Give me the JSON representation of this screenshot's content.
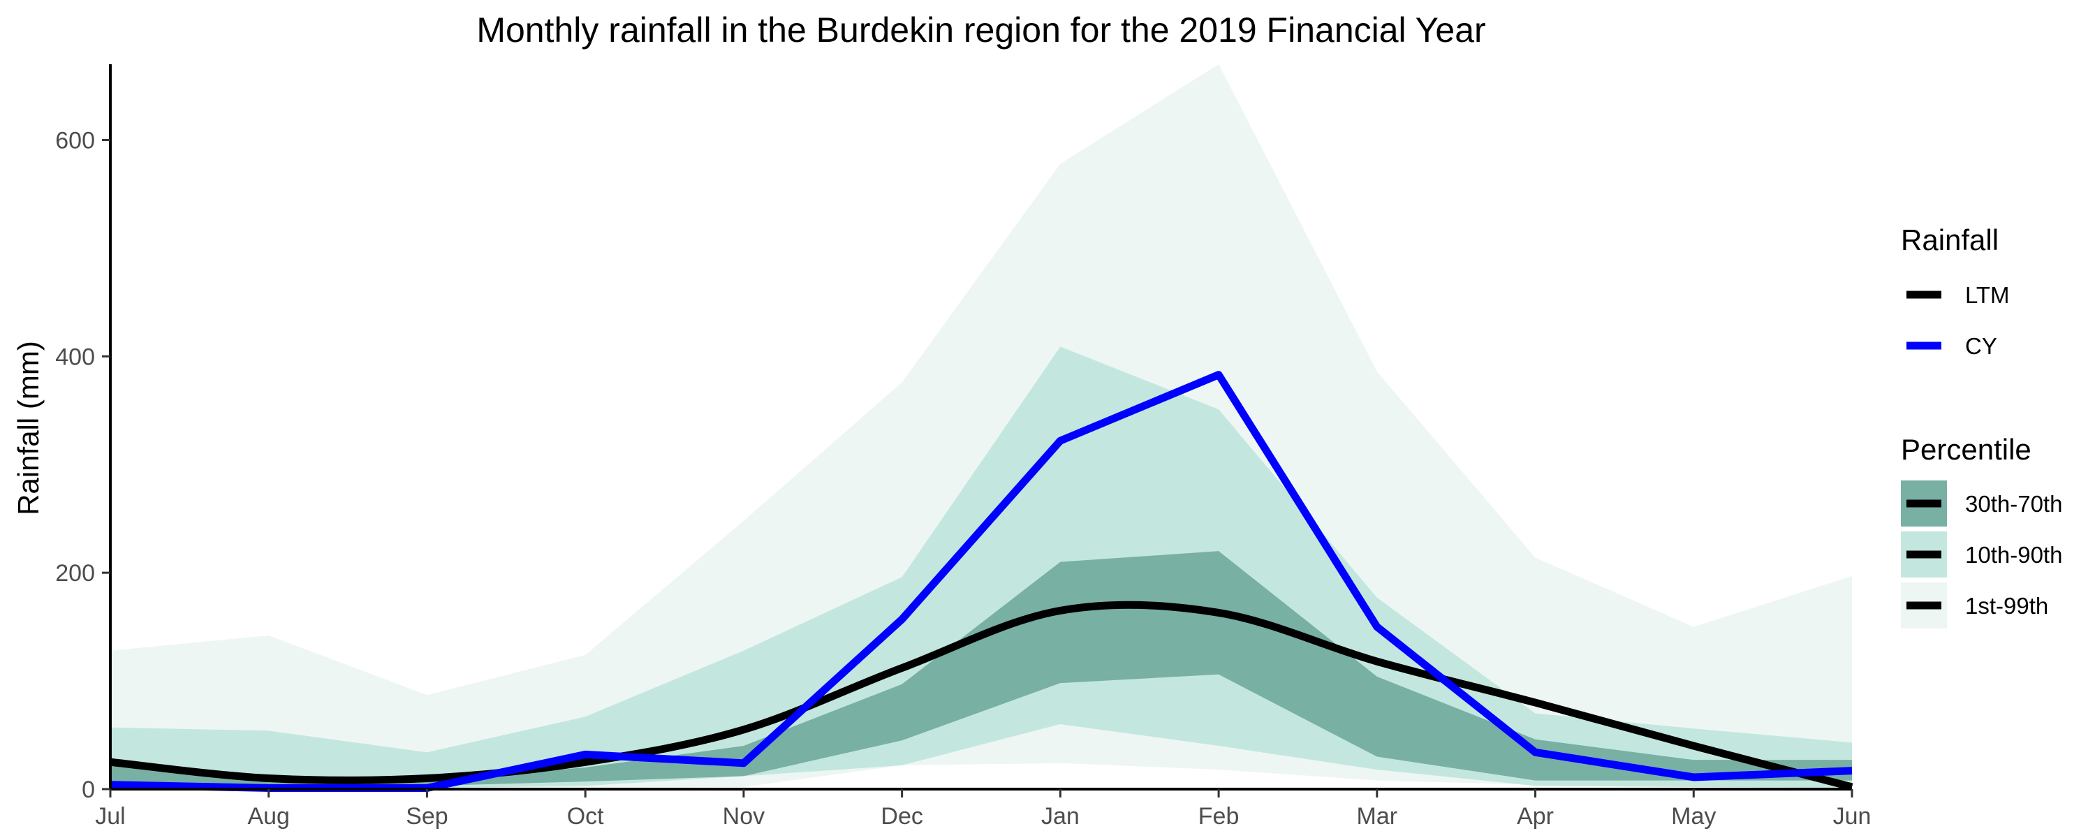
{
  "chart_data": {
    "type": "line",
    "title": "Monthly rainfall in the Burdekin region for the 2019 Financial Year",
    "xlabel": "",
    "ylabel": "Rainfall (mm)",
    "categories": [
      "Jul",
      "Aug",
      "Sep",
      "Oct",
      "Nov",
      "Dec",
      "Jan",
      "Feb",
      "Mar",
      "Apr",
      "May",
      "Jun"
    ],
    "ylim": [
      0,
      670
    ],
    "yticks": [
      0,
      200,
      400,
      600
    ],
    "grid": false,
    "legend_position": "right",
    "series": [
      {
        "name": "LTM",
        "color": "#000000",
        "values": [
          25,
          10,
          10,
          25,
          55,
          112,
          165,
          163,
          118,
          80,
          40,
          2
        ]
      },
      {
        "name": "CY",
        "color": "#0000ff",
        "values": [
          4,
          1,
          1,
          32,
          24,
          157,
          322,
          383,
          150,
          34,
          11,
          17
        ]
      }
    ],
    "bands": [
      {
        "name": "1st-99th",
        "color": "#eef6f3",
        "lower": [
          1,
          0,
          0,
          1,
          2,
          22,
          24,
          18,
          8,
          4,
          2,
          1
        ],
        "upper": [
          128,
          142,
          87,
          124,
          248,
          376,
          578,
          670,
          386,
          214,
          150,
          197
        ]
      },
      {
        "name": "10th-90th",
        "color": "#c3e7df",
        "lower": [
          3,
          2,
          1,
          3,
          12,
          22,
          60,
          40,
          18,
          3,
          2,
          1
        ],
        "upper": [
          57,
          54,
          34,
          67,
          128,
          196,
          409,
          351,
          177,
          70,
          56,
          43
        ]
      },
      {
        "name": "30th-70th",
        "color": "#78b0a4",
        "lower": [
          4,
          3,
          3,
          7,
          12,
          45,
          98,
          106,
          30,
          8,
          8,
          8
        ],
        "upper": [
          22,
          12,
          8,
          20,
          40,
          97,
          210,
          220,
          104,
          46,
          27,
          27
        ]
      }
    ],
    "legend": {
      "rainfall_title": "Rainfall",
      "percentile_title": "Percentile",
      "percentile_order": [
        "30th-70th",
        "10th-90th",
        "1st-99th"
      ]
    }
  }
}
